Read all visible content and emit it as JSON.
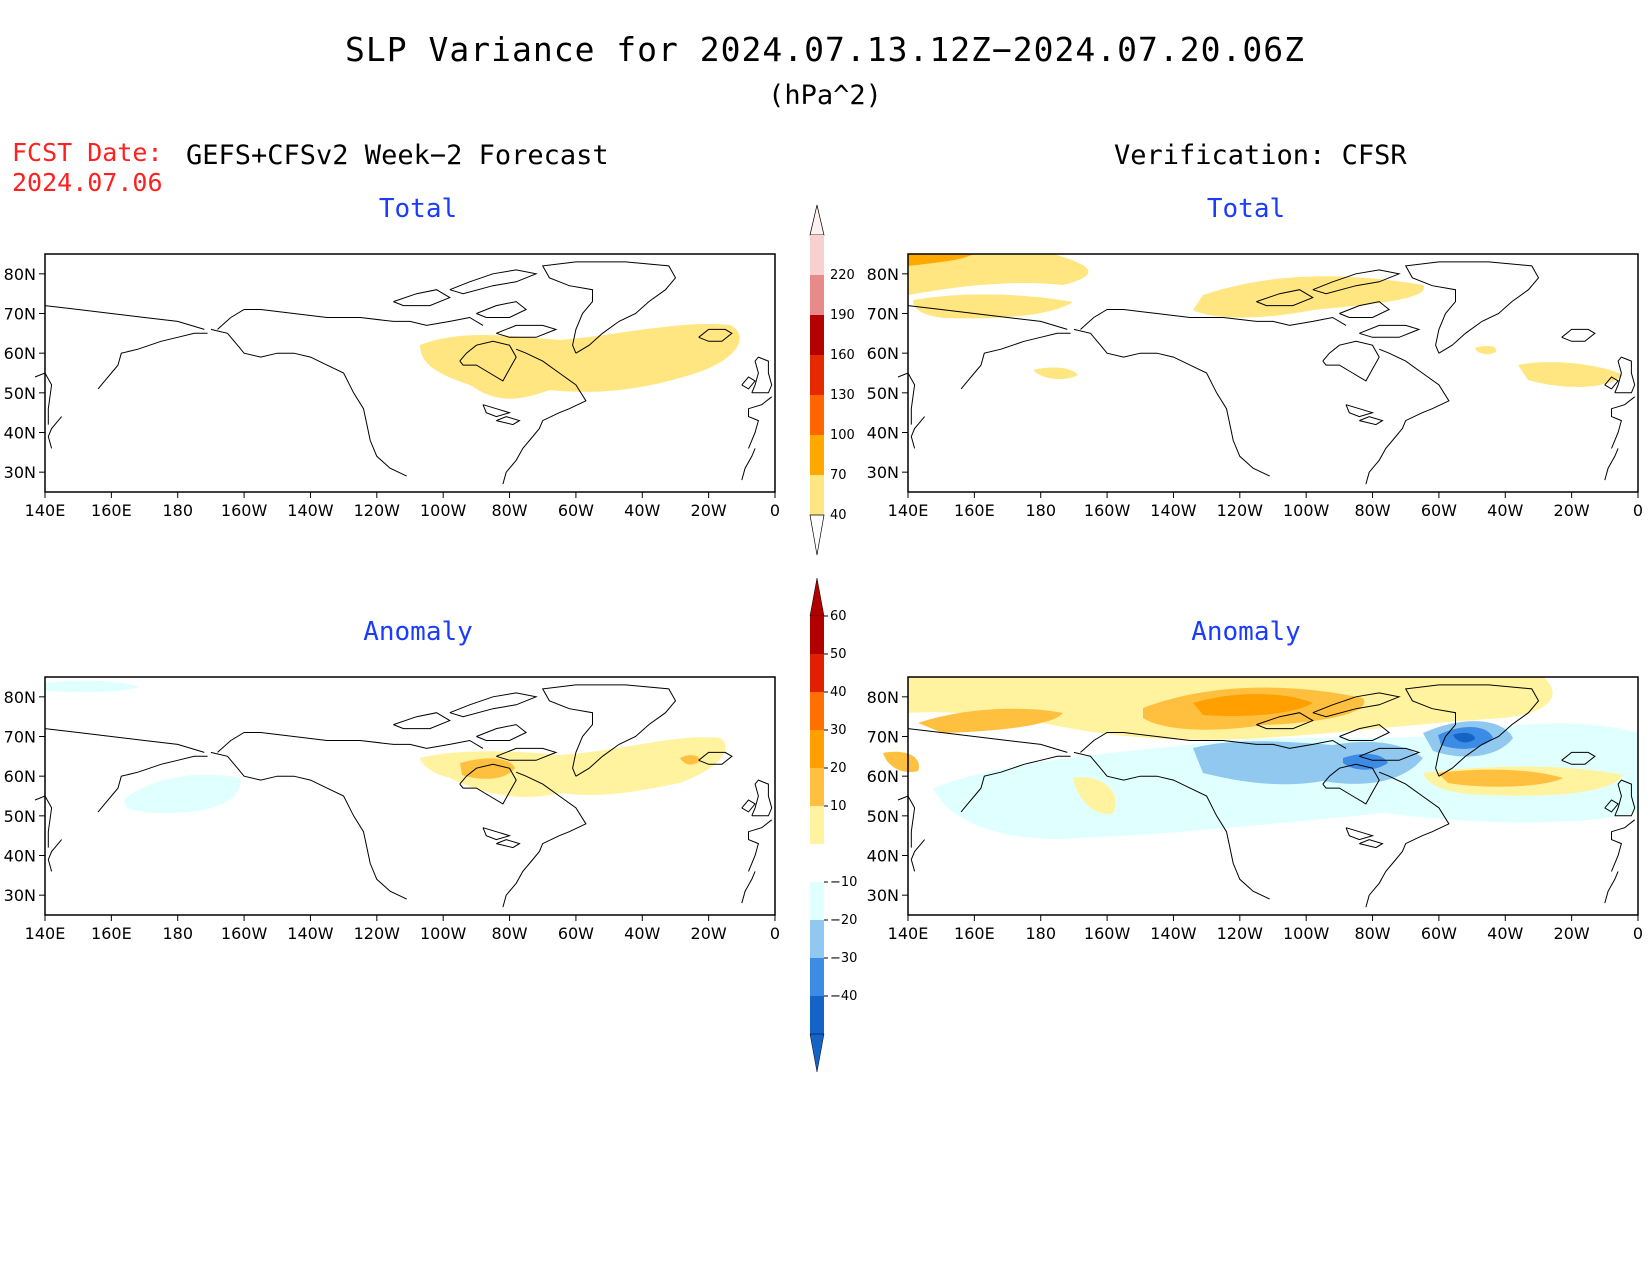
{
  "title": "SLP Variance for 2024.07.13.12Z−2024.07.20.06Z",
  "units": "(hPa^2)",
  "fcst_label": "FCST Date:",
  "fcst_date": "2024.07.06",
  "left_header": "GEFS+CFSv2 Week−2 Forecast",
  "right_header": "Verification: CFSR",
  "panels": {
    "top_left": "Total",
    "top_right": "Total",
    "bottom_left": "Anomaly",
    "bottom_right": "Anomaly"
  },
  "colors": {
    "c40": "#ffe680",
    "c70": "#ffa800",
    "c100": "#ff6600",
    "c130": "#e62a00",
    "c160": "#b30000",
    "c190": "#e88a8a",
    "c220": "#f8d0d0",
    "a10": "#fff3a0",
    "a20": "#ffc040",
    "a30": "#ffa000",
    "a40": "#ff7000",
    "a50": "#e02000",
    "a60": "#b00000",
    "n10": "#e0ffff",
    "n20": "#90c8f0",
    "n30": "#3c8ce6",
    "n40": "#1464c8",
    "coast": "#000000",
    "title_blue": "#1a3cff",
    "fcst_red": "#ff2020"
  },
  "chart_data": [
    {
      "type": "map-contour",
      "name": "forecast-total",
      "title": "Total",
      "x_ticks": [
        "140E",
        "160E",
        "180",
        "160W",
        "140W",
        "120W",
        "100W",
        "80W",
        "60W",
        "40W",
        "20W",
        "0"
      ],
      "y_ticks": [
        "80N",
        "70N",
        "60N",
        "50N",
        "40N",
        "30N"
      ],
      "lon_range": [
        140,
        360
      ],
      "lat_range": [
        25,
        85
      ],
      "features": [
        "yellow 40-70 region over Hudson Bay / Quebec to Greenland sea"
      ]
    },
    {
      "type": "map-contour",
      "name": "verification-total",
      "title": "Total",
      "x_ticks": [
        "140E",
        "160E",
        "180",
        "160W",
        "140W",
        "120W",
        "100W",
        "80W",
        "60W",
        "40W",
        "20W",
        "0"
      ],
      "y_ticks": [
        "80N",
        "70N",
        "60N",
        "50N",
        "40N",
        "30N"
      ],
      "lon_range": [
        140,
        360
      ],
      "lat_range": [
        25,
        85
      ]
    },
    {
      "type": "map-contour",
      "name": "forecast-anomaly",
      "title": "Anomaly",
      "x_ticks": [
        "140E",
        "160E",
        "180",
        "160W",
        "140W",
        "120W",
        "100W",
        "80W",
        "60W",
        "40W",
        "20W",
        "0"
      ],
      "y_ticks": [
        "80N",
        "70N",
        "60N",
        "50N",
        "40N",
        "30N"
      ],
      "lon_range": [
        140,
        360
      ],
      "lat_range": [
        25,
        85
      ]
    },
    {
      "type": "map-contour",
      "name": "verification-anomaly",
      "title": "Anomaly",
      "x_ticks": [
        "140E",
        "160E",
        "180",
        "160W",
        "140W",
        "120W",
        "100W",
        "80W",
        "60W",
        "40W",
        "20W",
        "0"
      ],
      "y_ticks": [
        "80N",
        "70N",
        "60N",
        "50N",
        "40N",
        "30N"
      ],
      "lon_range": [
        140,
        360
      ],
      "lat_range": [
        25,
        85
      ]
    }
  ],
  "colorbar_total": [
    "40",
    "70",
    "100",
    "130",
    "160",
    "190",
    "220"
  ],
  "colorbar_anomaly": [
    "60",
    "50",
    "40",
    "30",
    "20",
    "10",
    "−10",
    "−20",
    "−30",
    "−40"
  ]
}
